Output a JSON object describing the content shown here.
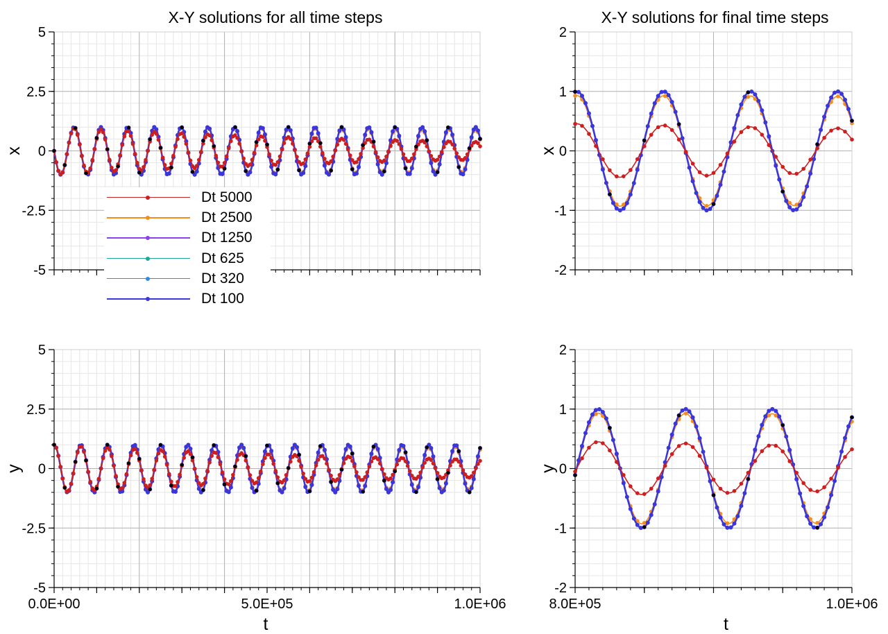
{
  "colors": {
    "Dt 5000": "#cc1f1f",
    "Dt 2500": "#f58c1e",
    "Dt 1250": "#8a3ff0",
    "Dt 625": "#1fa89a",
    "Dt 320": "#2a8ee8",
    "Dt 100": "#3b36d9",
    "exact": "#000000"
  },
  "legend": [
    {
      "label": "Dt 5000"
    },
    {
      "label": "Dt 2500"
    },
    {
      "label": "Dt 1250"
    },
    {
      "label": "Dt 625"
    },
    {
      "label": "Dt 320"
    },
    {
      "label": "Dt 100"
    }
  ],
  "chart_data": [
    {
      "type": "line",
      "title": "X-Y solutions for all time steps",
      "xlabel": "",
      "ylabel": "x",
      "xlim": [
        0,
        1000000
      ],
      "ylim": [
        -5,
        5
      ],
      "yticks": [
        "5",
        "2.5",
        "0",
        "-2.5",
        "-5"
      ],
      "xticks": [],
      "grid": true,
      "legend_position": "lower-left",
      "series": [
        {
          "name": "Dt 5000",
          "marker_step": 5000,
          "model": {
            "amp": 1.0,
            "period": 62832,
            "phase": "sin",
            "decay": 0.0028,
            "damped": true
          }
        },
        {
          "name": "Dt 2500",
          "marker_step": 5000,
          "model": {
            "amp": 1.0,
            "period": 62832,
            "phase": "sin",
            "decay": 0.00025,
            "damped": true
          }
        },
        {
          "name": "Dt 1250",
          "marker_step": 5000,
          "model": {
            "amp": 1.0,
            "period": 62832,
            "phase": "sin",
            "decay": 0.0,
            "damped": false
          }
        },
        {
          "name": "Dt 625",
          "marker_step": 0,
          "model": {
            "amp": 1.0,
            "period": 62832,
            "phase": "sin",
            "decay": 0.0,
            "damped": false
          }
        },
        {
          "name": "Dt 320",
          "marker_step": 0,
          "model": {
            "amp": 1.0,
            "period": 62832,
            "phase": "sin",
            "decay": 0.0,
            "damped": false
          }
        },
        {
          "name": "Dt 100",
          "marker_step": 2500,
          "model": {
            "amp": 1.0,
            "period": 62832,
            "phase": "sin",
            "decay": 0.0,
            "damped": false
          }
        }
      ]
    },
    {
      "type": "line",
      "title": "X-Y solutions for final time steps",
      "xlabel": "",
      "ylabel": "x",
      "xlim": [
        800000,
        1000000
      ],
      "ylim": [
        -2,
        2
      ],
      "yticks": [
        "2",
        "1",
        "0",
        "-1",
        "-2"
      ],
      "xticks": [],
      "grid": true,
      "series_ref": "same models as left panel"
    },
    {
      "type": "line",
      "title": "",
      "xlabel": "t",
      "ylabel": "y",
      "xlim": [
        0,
        1000000
      ],
      "ylim": [
        -5,
        5
      ],
      "yticks": [
        "5",
        "2.5",
        "0",
        "-2.5",
        "-5"
      ],
      "xticks": [
        "0.0E+00",
        "5.0E+05",
        "1.0E+06"
      ],
      "xtick_values": [
        0,
        500000,
        1000000
      ],
      "grid": true
    },
    {
      "type": "line",
      "title": "",
      "xlabel": "t",
      "ylabel": "y",
      "xlim": [
        800000,
        1000000
      ],
      "ylim": [
        -2,
        2
      ],
      "yticks": [
        "2",
        "1",
        "0",
        "-1",
        "-2"
      ],
      "xticks": [
        "8.0E+05",
        "1.0E+06"
      ],
      "xtick_values": [
        800000,
        1000000
      ],
      "grid": true
    }
  ]
}
